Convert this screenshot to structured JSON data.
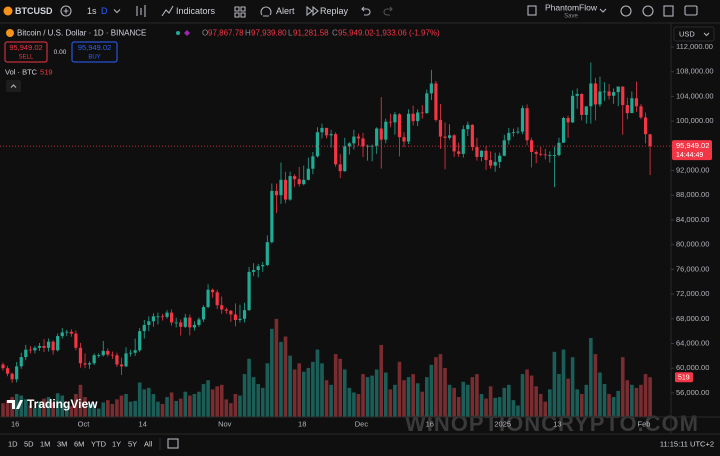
{
  "toolbar": {
    "symbol": "BTCUSD",
    "interval_1": "1s",
    "interval_2": "D",
    "indicators": "Indicators",
    "alert": "Alert",
    "replay": "Replay",
    "layout_name": "PhantomFlow",
    "layout_status": "Save"
  },
  "legend": {
    "title": "Bitcoin / U.S. Dollar · 1D · BINANCE",
    "open": {
      "label": "O",
      "value": "97,867.78"
    },
    "high": {
      "label": "H",
      "value": "97,939.80"
    },
    "low": {
      "label": "L",
      "value": "91,281.58"
    },
    "close": {
      "label": "C",
      "value": "95,949.02"
    },
    "change": "-1,933.06 (-1.97%)"
  },
  "trade": {
    "sell_price": "95,949.02",
    "sell": "SELL",
    "spread": "0.00",
    "buy_price": "95,949.02",
    "buy": "BUY"
  },
  "volume_legend": {
    "title": "Vol · BTC"
  },
  "currency": "USD",
  "price_tag": "95,949.02",
  "countdown": "14:44:49",
  "logo": "TradingView",
  "watermark": "WINOPTIONCRYPTO.COM",
  "ranges": [
    "1D",
    "5D",
    "1M",
    "3M",
    "6M",
    "YTD",
    "1Y",
    "5Y",
    "All"
  ],
  "clock": "11:15:11 UTC+2",
  "chart_data": {
    "type": "candlestick",
    "grid": false,
    "up_color": "#22ab94",
    "down_color": "#f23645",
    "volume_up_color": "#1b5e57",
    "volume_down_color": "#7a2d30",
    "ylim": [
      52100,
      115400
    ],
    "yticks": [
      {
        "value": 56000,
        "label": "56,000.00"
      },
      {
        "value": 60000,
        "label": "60,000.00"
      },
      {
        "value": 64000,
        "label": "64,000.00"
      },
      {
        "value": 68000,
        "label": "68,000.00"
      },
      {
        "value": 72000,
        "label": "72,000.00"
      },
      {
        "value": 76000,
        "label": "76,000.00"
      },
      {
        "value": 80000,
        "label": "80,000.00"
      },
      {
        "value": 84000,
        "label": "84,000.00"
      },
      {
        "value": 88000,
        "label": "88,000.00"
      },
      {
        "value": 92000,
        "label": "92,000.00"
      },
      {
        "value": 96000,
        "label": "96,000.00"
      },
      {
        "value": 100000,
        "label": "100,000.00"
      },
      {
        "value": 104000,
        "label": "104,000.00"
      },
      {
        "value": 108000,
        "label": "108,000.00"
      },
      {
        "value": 112000,
        "label": "112,000.00"
      }
    ],
    "y2lim": [
      0,
      5100
    ],
    "categories": [
      null,
      null,
      "16",
      null,
      null,
      null,
      null,
      null,
      null,
      null,
      null,
      null,
      null,
      null,
      null,
      null,
      null,
      "Oct",
      null,
      null,
      null,
      null,
      null,
      null,
      null,
      null,
      null,
      null,
      null,
      null,
      "14",
      null,
      null,
      null,
      null,
      null,
      null,
      null,
      null,
      null,
      null,
      null,
      null,
      null,
      null,
      null,
      null,
      null,
      "Nov",
      null,
      null,
      null,
      null,
      null,
      null,
      null,
      null,
      null,
      null,
      null,
      null,
      null,
      null,
      null,
      null,
      "18",
      null,
      null,
      null,
      null,
      null,
      null,
      null,
      null,
      null,
      null,
      null,
      null,
      "Dec",
      null,
      null,
      null,
      null,
      null,
      null,
      null,
      null,
      null,
      null,
      null,
      null,
      null,
      null,
      "16",
      null,
      null,
      null,
      null,
      null,
      null,
      null,
      null,
      null,
      null,
      null,
      null,
      null,
      null,
      null,
      "2025",
      null,
      null,
      null,
      null,
      null,
      null,
      null,
      null,
      null,
      null,
      null,
      "13",
      null,
      null,
      null,
      null,
      null,
      null,
      null,
      null,
      null,
      null,
      null,
      null,
      null,
      null,
      null,
      null,
      null,
      null,
      "Feb",
      null,
      null
    ],
    "ohlc": [
      [
        60600,
        60900,
        59600,
        60000
      ],
      [
        60000,
        60400,
        58700,
        59100
      ],
      [
        59100,
        59300,
        57600,
        58200
      ],
      [
        58200,
        61000,
        57700,
        60300
      ],
      [
        60300,
        62500,
        59900,
        61800
      ],
      [
        61800,
        63800,
        61300,
        63000
      ],
      [
        63000,
        63600,
        62400,
        62900
      ],
      [
        62900,
        63600,
        62400,
        63300
      ],
      [
        63300,
        64100,
        62800,
        63600
      ],
      [
        63600,
        64700,
        62600,
        63300
      ],
      [
        63300,
        64800,
        62700,
        64300
      ],
      [
        64300,
        64500,
        62200,
        62900
      ],
      [
        62900,
        65600,
        62700,
        65200
      ],
      [
        65200,
        66500,
        64800,
        65800
      ],
      [
        65800,
        66200,
        65200,
        65900
      ],
      [
        65900,
        66300,
        65100,
        65600
      ],
      [
        65600,
        66100,
        62900,
        63300
      ],
      [
        63300,
        64100,
        60100,
        60800
      ],
      [
        60800,
        62400,
        60000,
        60600
      ],
      [
        60600,
        61100,
        59900,
        60800
      ],
      [
        60800,
        62400,
        60500,
        62100
      ],
      [
        62100,
        62400,
        61700,
        62100
      ],
      [
        62100,
        64400,
        61900,
        62800
      ],
      [
        62800,
        63200,
        61900,
        62200
      ],
      [
        62200,
        62700,
        61500,
        62100
      ],
      [
        62100,
        62500,
        60200,
        60600
      ],
      [
        60600,
        61700,
        58900,
        60300
      ],
      [
        60300,
        63400,
        60200,
        62400
      ],
      [
        62400,
        63000,
        61900,
        62500
      ],
      [
        62500,
        64800,
        62000,
        62900
      ],
      [
        62900,
        66500,
        62600,
        66000
      ],
      [
        66000,
        67800,
        64800,
        67000
      ],
      [
        67000,
        68400,
        66000,
        67600
      ],
      [
        67600,
        68900,
        66700,
        68400
      ],
      [
        68400,
        69000,
        67100,
        68400
      ],
      [
        68400,
        68800,
        67700,
        68300
      ],
      [
        68300,
        69400,
        68000,
        69000
      ],
      [
        69000,
        69500,
        66900,
        67400
      ],
      [
        67400,
        68200,
        66600,
        67400
      ],
      [
        67400,
        67900,
        65300,
        66700
      ],
      [
        66700,
        68800,
        66500,
        68200
      ],
      [
        68200,
        68700,
        65300,
        66600
      ],
      [
        66600,
        67600,
        66100,
        67000
      ],
      [
        67000,
        68200,
        66700,
        67900
      ],
      [
        67900,
        70200,
        67500,
        69900
      ],
      [
        69900,
        73600,
        69700,
        72700
      ],
      [
        72700,
        72900,
        71400,
        72300
      ],
      [
        72300,
        72700,
        69600,
        70200
      ],
      [
        70200,
        71600,
        68800,
        69500
      ],
      [
        69500,
        69800,
        68800,
        69300
      ],
      [
        69300,
        69400,
        67500,
        68700
      ],
      [
        68700,
        70500,
        66800,
        67800
      ],
      [
        67800,
        70300,
        67400,
        68000
      ],
      [
        68000,
        70600,
        67400,
        69400
      ],
      [
        69400,
        76400,
        69300,
        75600
      ],
      [
        75600,
        77000,
        74900,
        75900
      ],
      [
        75900,
        76900,
        74700,
        76500
      ],
      [
        76500,
        77200,
        75600,
        76700
      ],
      [
        76700,
        81500,
        76500,
        80400
      ],
      [
        80400,
        89900,
        80200,
        88700
      ],
      [
        88700,
        89900,
        85100,
        88000
      ],
      [
        88000,
        93300,
        86600,
        90500
      ],
      [
        90500,
        91800,
        86700,
        87300
      ],
      [
        87300,
        91800,
        87100,
        91100
      ],
      [
        91100,
        91400,
        89300,
        90600
      ],
      [
        90600,
        92600,
        89400,
        89800
      ],
      [
        89800,
        92800,
        89600,
        90500
      ],
      [
        90500,
        94100,
        90400,
        92300
      ],
      [
        92300,
        95000,
        91400,
        94300
      ],
      [
        94300,
        99000,
        94100,
        98200
      ],
      [
        98200,
        99600,
        97200,
        98900
      ],
      [
        98900,
        98900,
        97200,
        97700
      ],
      [
        97700,
        98600,
        95700,
        97900
      ],
      [
        97900,
        98200,
        92600,
        93000
      ],
      [
        93000,
        94700,
        90800,
        91900
      ],
      [
        91900,
        97300,
        91800,
        95900
      ],
      [
        95900,
        96600,
        94600,
        96400
      ],
      [
        96400,
        98600,
        95400,
        97500
      ],
      [
        97500,
        98000,
        96000,
        97200
      ],
      [
        97200,
        98100,
        94200,
        95900
      ],
      [
        95900,
        96200,
        93600,
        96000
      ],
      [
        96000,
        96200,
        93500,
        96000
      ],
      [
        96000,
        99000,
        94700,
        98800
      ],
      [
        98800,
        103900,
        92300,
        97000
      ],
      [
        97000,
        100400,
        96400,
        99900
      ],
      [
        99900,
        101200,
        99000,
        99800
      ],
      [
        99800,
        101500,
        97800,
        101100
      ],
      [
        101100,
        101300,
        94300,
        97400
      ],
      [
        97400,
        98200,
        95800,
        96700
      ],
      [
        96700,
        101900,
        96300,
        101200
      ],
      [
        101200,
        102500,
        99300,
        100000
      ],
      [
        100000,
        101900,
        99200,
        101400
      ],
      [
        101400,
        102600,
        100400,
        101300
      ],
      [
        101300,
        105100,
        101200,
        104500
      ],
      [
        104500,
        108300,
        103400,
        106100
      ],
      [
        106100,
        106500,
        99900,
        100200
      ],
      [
        100200,
        102800,
        95500,
        97500
      ],
      [
        97500,
        99800,
        92200,
        97300
      ],
      [
        97300,
        99500,
        97000,
        97700
      ],
      [
        97700,
        97900,
        94200,
        95100
      ],
      [
        95100,
        96500,
        94200,
        94700
      ],
      [
        94700,
        99300,
        94100,
        98700
      ],
      [
        98700,
        99900,
        97600,
        99400
      ],
      [
        99400,
        99500,
        95200,
        95800
      ],
      [
        95800,
        97300,
        93600,
        94200
      ],
      [
        94200,
        95300,
        93500,
        95200
      ],
      [
        95200,
        96000,
        92100,
        93700
      ],
      [
        93700,
        95100,
        92300,
        92800
      ],
      [
        92800,
        94900,
        91800,
        93400
      ],
      [
        93400,
        94900,
        92400,
        94400
      ],
      [
        94400,
        97800,
        94300,
        96900
      ],
      [
        96900,
        98900,
        96200,
        98100
      ],
      [
        98100,
        98800,
        97500,
        98200
      ],
      [
        98200,
        99000,
        97900,
        98300
      ],
      [
        98300,
        102500,
        97900,
        102100
      ],
      [
        102100,
        102700,
        96100,
        96900
      ],
      [
        96900,
        97300,
        92500,
        95000
      ],
      [
        95000,
        95300,
        93200,
        94700
      ],
      [
        94700,
        95800,
        94300,
        94600
      ],
      [
        94600,
        95500,
        93800,
        94500
      ],
      [
        94500,
        95100,
        93300,
        94500
      ],
      [
        94500,
        95900,
        89300,
        94500
      ],
      [
        94500,
        97300,
        94300,
        96500
      ],
      [
        96500,
        100700,
        96500,
        100500
      ],
      [
        100500,
        100900,
        97300,
        99800
      ],
      [
        99800,
        105000,
        99700,
        104100
      ],
      [
        104100,
        105300,
        102000,
        104400
      ],
      [
        104400,
        104500,
        100100,
        101000
      ],
      [
        101000,
        102300,
        99600,
        102400
      ],
      [
        102400,
        109500,
        99600,
        106100
      ],
      [
        106100,
        107000,
        100100,
        102700
      ],
      [
        102700,
        107200,
        102300,
        104800
      ],
      [
        104800,
        106300,
        103300,
        104800
      ],
      [
        104800,
        106000,
        103500,
        104100
      ],
      [
        104100,
        105300,
        102800,
        104700
      ],
      [
        104700,
        105500,
        102400,
        105600
      ],
      [
        105600,
        105600,
        97800,
        102600
      ],
      [
        102600,
        103800,
        100300,
        101300
      ],
      [
        101300,
        104800,
        101300,
        103700
      ],
      [
        103700,
        106400,
        101500,
        102400
      ],
      [
        102400,
        102800,
        100300,
        100600
      ],
      [
        100600,
        101400,
        96400,
        97882.08
      ],
      [
        97867.78,
        97939.8,
        91281.58,
        95949.02
      ]
    ],
    "volume": [
      180,
      220,
      260,
      300,
      280,
      230,
      150,
      120,
      200,
      240,
      260,
      190,
      310,
      280,
      150,
      140,
      300,
      420,
      260,
      170,
      160,
      110,
      190,
      220,
      170,
      230,
      280,
      300,
      200,
      210,
      450,
      360,
      380,
      300,
      200,
      170,
      260,
      320,
      210,
      240,
      330,
      280,
      300,
      330,
      430,
      480,
      360,
      400,
      420,
      230,
      180,
      300,
      280,
      560,
      760,
      520,
      430,
      380,
      700,
      1150,
      1280,
      980,
      1050,
      800,
      620,
      700,
      590,
      640,
      720,
      880,
      700,
      480,
      420,
      820,
      760,
      620,
      380,
      320,
      300,
      560,
      520,
      540,
      620,
      940,
      580,
      360,
      420,
      720,
      480,
      520,
      560,
      440,
      330,
      520,
      680,
      780,
      820,
      640,
      420,
      380,
      260,
      460,
      420,
      520,
      560,
      300,
      240,
      400,
      250,
      260,
      380,
      420,
      220,
      150,
      560,
      620,
      540,
      400,
      300,
      200,
      360,
      850,
      560,
      880,
      500,
      780,
      360,
      300,
      420,
      1030,
      820,
      580,
      430,
      300,
      260,
      340,
      780,
      480,
      420,
      380,
      420,
      560,
      519
    ]
  }
}
